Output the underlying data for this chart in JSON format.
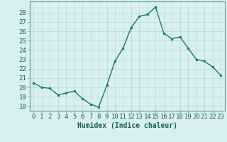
{
  "x": [
    0,
    1,
    2,
    3,
    4,
    5,
    6,
    7,
    8,
    9,
    10,
    11,
    12,
    13,
    14,
    15,
    16,
    17,
    18,
    19,
    20,
    21,
    22,
    23
  ],
  "y": [
    20.5,
    20.0,
    19.9,
    19.2,
    19.4,
    19.6,
    18.8,
    18.2,
    17.9,
    20.2,
    22.8,
    24.2,
    26.4,
    27.6,
    27.8,
    28.6,
    25.8,
    25.2,
    25.4,
    24.2,
    23.0,
    22.8,
    22.2,
    21.3
  ],
  "line_color": "#1a7a6a",
  "bg_color": "#d8f0f0",
  "grid_color": "#c0dada",
  "xlabel": "Humidex (Indice chaleur)",
  "ylim": [
    17.5,
    29.2
  ],
  "yticks": [
    18,
    19,
    20,
    21,
    22,
    23,
    24,
    25,
    26,
    27,
    28
  ],
  "xticks": [
    0,
    1,
    2,
    3,
    4,
    5,
    6,
    7,
    8,
    9,
    10,
    11,
    12,
    13,
    14,
    15,
    16,
    17,
    18,
    19,
    20,
    21,
    22,
    23
  ],
  "xlabel_fontsize": 7,
  "tick_fontsize": 6.5
}
